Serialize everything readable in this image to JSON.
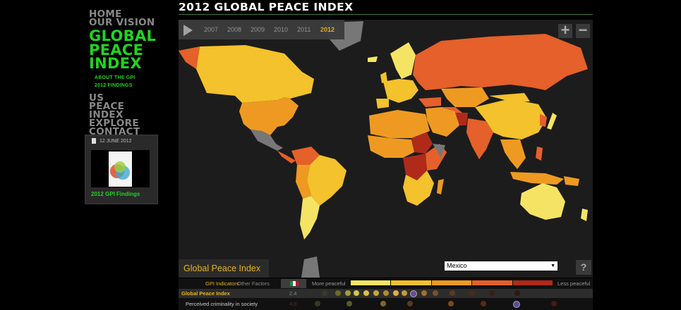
{
  "nav": {
    "home": "HOME",
    "vision": "OUR VISION",
    "gpi_title": "GLOBAL PEACE INDEX",
    "sub_items": [
      "ABOUT THE GPI",
      "2012 FINDINGS"
    ],
    "us_index": "US PEACE INDEX",
    "explore": "EXPLORE",
    "contact": "CONTACT"
  },
  "card": {
    "date": "12 JUNE 2012",
    "caption": "2012 GPI Findings"
  },
  "header": {
    "title": "2012 GLOBAL PEACE INDEX"
  },
  "timeline": {
    "years": [
      "2007",
      "2008",
      "2009",
      "2010",
      "2011",
      "2012"
    ],
    "selected": "2012"
  },
  "zoom": {
    "in": "+",
    "out": "−"
  },
  "map": {
    "panel_label": "Global Peace Index",
    "country_select": "Mexico",
    "help": "?"
  },
  "indicators": {
    "tab_active": "GPI Indicators",
    "tab_other": "Other Factors",
    "scale_left": "More peaceful",
    "scale_right": "Less peaceful",
    "scale_colors": [
      "#f5e464",
      "#f3c22c",
      "#ee9a22",
      "#e5602a",
      "#b02a1a"
    ],
    "rows": [
      {
        "name": "Global Peace Index",
        "score": "2.4"
      },
      {
        "name": "Perceived criminality in society",
        "score": "4.0"
      }
    ]
  },
  "colors": {
    "accent_green": "#1fd51f",
    "accent_gold": "#e6b21c",
    "very_peaceful": "#f5e464",
    "peaceful": "#f3c22c",
    "medium": "#ee9a22",
    "low": "#e5602a",
    "very_low": "#b02a1a",
    "no_data": "#777777"
  }
}
